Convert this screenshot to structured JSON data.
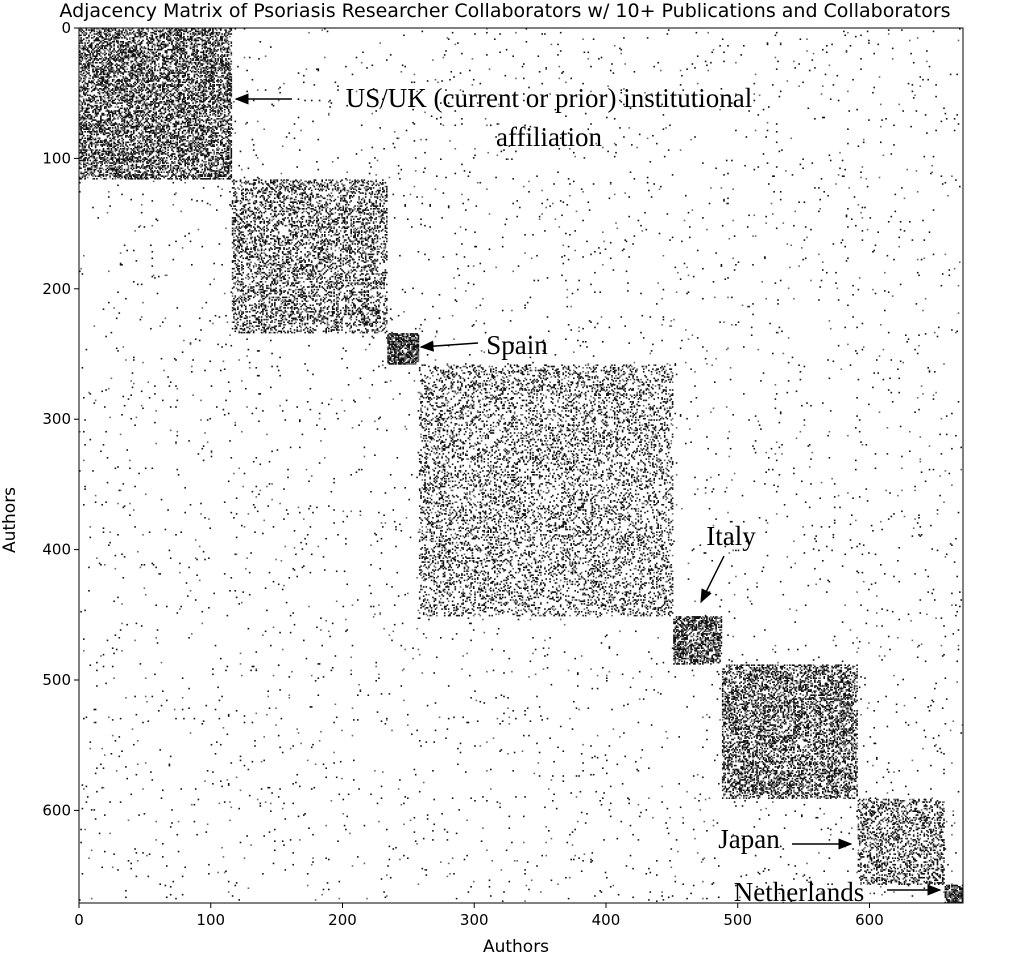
{
  "chart_data": {
    "type": "heatmap",
    "title": "Adjacency Matrix of Psoriasis Researcher Collaborators w/ 10+ Publications and Collaborators",
    "xlabel": "Authors",
    "ylabel": "Authors",
    "xlim": [
      0,
      671
    ],
    "ylim": [
      671,
      0
    ],
    "xticks": [
      0,
      100,
      200,
      300,
      400,
      500,
      600
    ],
    "yticks": [
      0,
      100,
      200,
      300,
      400,
      500,
      600
    ],
    "grid": false,
    "colormap": [
      "#ffffff",
      "#000000"
    ],
    "clusters": [
      {
        "label": "US/UK (current or prior) institutional affiliation",
        "start": 0,
        "end": 116,
        "density": 0.45
      },
      {
        "label": "",
        "start": 116,
        "end": 234,
        "density": 0.3
      },
      {
        "label": "Spain",
        "start": 234,
        "end": 258,
        "density": 0.75
      },
      {
        "label": "",
        "start": 258,
        "end": 451,
        "density": 0.2
      },
      {
        "label": "Italy",
        "start": 451,
        "end": 488,
        "density": 0.55
      },
      {
        "label": "",
        "start": 488,
        "end": 591,
        "density": 0.4
      },
      {
        "label": "Japan",
        "start": 591,
        "end": 657,
        "density": 0.3
      },
      {
        "label": "Netherlands",
        "start": 657,
        "end": 671,
        "density": 0.75
      }
    ],
    "annotations": [
      {
        "lines": [
          "US/UK (current or prior) institutional",
          "affiliation"
        ],
        "target_cluster": 0
      },
      {
        "lines": [
          "Spain"
        ],
        "target_cluster": 2
      },
      {
        "lines": [
          "Italy"
        ],
        "target_cluster": 4
      },
      {
        "lines": [
          "Japan"
        ],
        "target_cluster": 6
      },
      {
        "lines": [
          "Netherlands"
        ],
        "target_cluster": 7
      }
    ]
  }
}
